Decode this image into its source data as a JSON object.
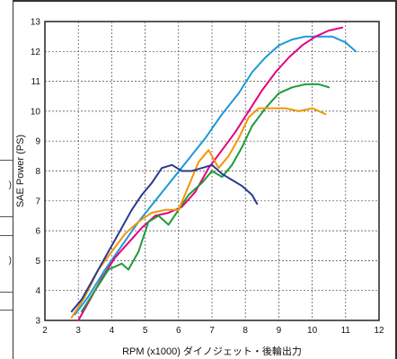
{
  "side_labels": [
    ")",
    ")"
  ],
  "chart_data": {
    "type": "line",
    "title": "",
    "xlabel": "RPM (x1000) ダイノジェット・後輪出力",
    "ylabel": "SAE Power (PS)",
    "xlim": [
      2,
      12
    ],
    "ylim": [
      3,
      13
    ],
    "xticks": [
      "2",
      "3",
      "4",
      "5",
      "6",
      "7",
      "8",
      "9",
      "10",
      "11",
      "12"
    ],
    "yticks": [
      "3",
      "4",
      "5",
      "6",
      "7",
      "8",
      "9",
      "10",
      "11",
      "12",
      "13"
    ],
    "grid": true,
    "legend": "none",
    "series": [
      {
        "color": "#1a9ad6",
        "x": [
          2.9,
          3.3,
          3.8,
          4.3,
          4.8,
          5.3,
          5.8,
          6.3,
          6.8,
          7.3,
          7.8,
          8.2,
          8.6,
          9.0,
          9.4,
          9.8,
          10.2,
          10.6,
          11.0,
          11.3
        ],
        "y": [
          3.2,
          3.8,
          4.7,
          5.5,
          6.3,
          7.0,
          7.7,
          8.4,
          9.1,
          9.9,
          10.6,
          11.3,
          11.8,
          12.2,
          12.4,
          12.5,
          12.5,
          12.5,
          12.3,
          12.0
        ]
      },
      {
        "color": "#e6007e",
        "x": [
          3.0,
          3.3,
          3.7,
          4.1,
          4.5,
          4.9,
          5.3,
          5.7,
          6.1,
          6.5,
          6.9,
          7.3,
          7.7,
          8.1,
          8.5,
          8.9,
          9.3,
          9.7,
          10.1,
          10.5,
          10.9
        ],
        "y": [
          3.0,
          3.6,
          4.4,
          5.1,
          5.6,
          6.1,
          6.5,
          6.6,
          6.8,
          7.3,
          8.1,
          8.7,
          9.3,
          10.0,
          10.7,
          11.3,
          11.8,
          12.2,
          12.5,
          12.7,
          12.8
        ]
      },
      {
        "color": "#1e9c3a",
        "x": [
          3.1,
          3.5,
          3.9,
          4.3,
          4.5,
          4.8,
          5.1,
          5.4,
          5.7,
          6.0,
          6.3,
          6.7,
          7.0,
          7.3,
          7.6,
          7.9,
          8.2,
          8.6,
          9.0,
          9.4,
          9.8,
          10.2,
          10.5
        ],
        "y": [
          3.3,
          4.0,
          4.7,
          4.9,
          4.7,
          5.3,
          6.3,
          6.5,
          6.2,
          6.7,
          7.2,
          7.6,
          8.0,
          7.8,
          8.2,
          8.8,
          9.5,
          10.1,
          10.6,
          10.8,
          10.9,
          10.9,
          10.8
        ]
      },
      {
        "color": "#f0960a",
        "x": [
          2.8,
          3.2,
          3.6,
          4.0,
          4.4,
          4.8,
          5.2,
          5.6,
          6.0,
          6.3,
          6.6,
          6.9,
          7.2,
          7.5,
          7.8,
          8.1,
          8.4,
          8.8,
          9.2,
          9.6,
          10.0,
          10.4
        ],
        "y": [
          3.1,
          3.8,
          4.7,
          5.3,
          5.9,
          6.3,
          6.6,
          6.7,
          6.7,
          7.5,
          8.3,
          8.7,
          8.1,
          8.5,
          9.1,
          9.8,
          10.1,
          10.1,
          10.1,
          10.0,
          10.1,
          9.9
        ]
      },
      {
        "color": "#2a3a8c",
        "x": [
          2.8,
          3.1,
          3.4,
          3.7,
          4.0,
          4.3,
          4.6,
          4.9,
          5.2,
          5.5,
          5.8,
          6.1,
          6.4,
          6.7,
          7.0,
          7.3,
          7.6,
          7.9,
          8.2,
          8.35
        ],
        "y": [
          3.3,
          3.7,
          4.3,
          4.9,
          5.5,
          6.1,
          6.7,
          7.2,
          7.6,
          8.1,
          8.2,
          8.0,
          8.0,
          8.1,
          8.2,
          7.9,
          7.7,
          7.5,
          7.2,
          6.9
        ]
      }
    ]
  }
}
